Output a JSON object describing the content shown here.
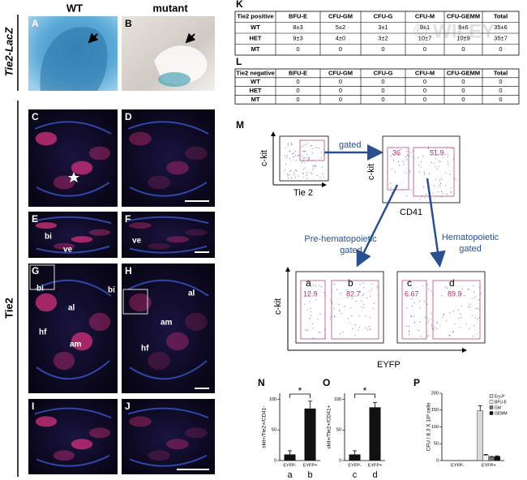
{
  "column_headers": [
    "WT",
    "mutant"
  ],
  "row_labels": [
    "Tie2-LacZ",
    "Tie2"
  ],
  "image_panels": [
    {
      "letter": "A",
      "labels": []
    },
    {
      "letter": "B",
      "labels": []
    },
    {
      "letter": "C",
      "labels": []
    },
    {
      "letter": "D",
      "labels": []
    },
    {
      "letter": "E",
      "labels": [
        "bi",
        "ve"
      ]
    },
    {
      "letter": "F",
      "labels": [
        "ve"
      ]
    },
    {
      "letter": "G",
      "labels": [
        "bi",
        "bi",
        "al",
        "hf",
        "am"
      ]
    },
    {
      "letter": "H",
      "labels": [
        "al",
        "am",
        "hf"
      ]
    },
    {
      "letter": "I",
      "labels": []
    },
    {
      "letter": "J",
      "labels": []
    }
  ],
  "tables": [
    {
      "letter": "K",
      "header": [
        "Tie2 positive",
        "BFU-E",
        "CFU-GM",
        "CFU-G",
        "CFU-M",
        "CFU-GEMM",
        "Total"
      ],
      "rows": [
        [
          "WT",
          "8±3",
          "5±2",
          "3±1",
          "9±1",
          "9±6",
          "35±6"
        ],
        [
          "HET",
          "9±3",
          "4±0",
          "3±2",
          "10±7",
          "10±9",
          "35±7"
        ],
        [
          "MT",
          "0",
          "0",
          "0",
          "0",
          "0",
          "0"
        ]
      ]
    },
    {
      "letter": "L",
      "header": [
        "Tie2 negative",
        "BFU-E",
        "CFU-GM",
        "CFU-G",
        "CFU-M",
        "CFU-GEMM",
        "Total"
      ],
      "rows": [
        [
          "WT",
          "0",
          "0",
          "0",
          "0",
          "0",
          "0"
        ],
        [
          "HET",
          "0",
          "0",
          "0",
          "0",
          "0",
          "0"
        ],
        [
          "MT",
          "0",
          "0",
          "0",
          "0",
          "0",
          "0"
        ]
      ]
    }
  ],
  "watermark": "© WILEY",
  "flow": {
    "letter": "M",
    "first_plot": {
      "y_label": "c-kit",
      "x_label": "Tie 2",
      "arrow_label": "gated"
    },
    "second_plot": {
      "y_label": "c-kit",
      "x_label": "CD41",
      "gates": [
        "36",
        "51.9"
      ]
    },
    "branch_labels": [
      [
        "Pre-hematopoietic",
        "gated"
      ],
      [
        "Hematopoietic",
        "gated"
      ]
    ],
    "third_plot": {
      "gate_names": [
        "a",
        "b"
      ],
      "gates": [
        "12.9",
        "82.7"
      ]
    },
    "fourth_plot": {
      "gate_names": [
        "c",
        "d"
      ],
      "gates": [
        "6.67",
        "89.9"
      ]
    },
    "y_label": "c-kit",
    "x_label": "EYFP"
  },
  "charts": [
    {
      "letter": "N",
      "type": "bar",
      "y_label": "ckit+/Tie2+/CD41-",
      "categories": [
        "EYFP-",
        "EYFP+"
      ],
      "sublabels": [
        "a",
        "b"
      ],
      "values": [
        10,
        85
      ],
      "errors": [
        6,
        12
      ],
      "ylim": [
        0,
        110
      ],
      "yticks": [
        0,
        50,
        100
      ],
      "significance": "*",
      "color": "#111111"
    },
    {
      "letter": "O",
      "type": "bar",
      "y_label": "ckit+/Tie2+/CD41+",
      "categories": [
        "EYFP-",
        "EYFP+"
      ],
      "sublabels": [
        "c",
        "d"
      ],
      "values": [
        10,
        87
      ],
      "errors": [
        6,
        8
      ],
      "ylim": [
        0,
        110
      ],
      "yticks": [
        0,
        50,
        100
      ],
      "significance": "*",
      "color": "#111111"
    },
    {
      "letter": "P",
      "type": "grouped-bar",
      "y_label": "CFU / 8.3 X 10³ cells",
      "categories": [
        "EYFP-",
        "EYFP+"
      ],
      "series": [
        {
          "name": "Ery-P",
          "color": "#d9d9d9",
          "values": [
            0,
            148
          ],
          "errors": [
            0,
            15
          ]
        },
        {
          "name": "BFU-E",
          "color": "#f4f4f4",
          "values": [
            0,
            15
          ],
          "errors": [
            0,
            3
          ]
        },
        {
          "name": "GM",
          "color": "#777777",
          "values": [
            0,
            10
          ],
          "errors": [
            0,
            2
          ]
        },
        {
          "name": "GEMM",
          "color": "#111111",
          "values": [
            0,
            12
          ],
          "errors": [
            0,
            2
          ]
        }
      ],
      "ylim": [
        0,
        200
      ],
      "yticks": [
        0,
        50,
        100,
        150,
        200
      ],
      "legend": "top-right"
    }
  ]
}
